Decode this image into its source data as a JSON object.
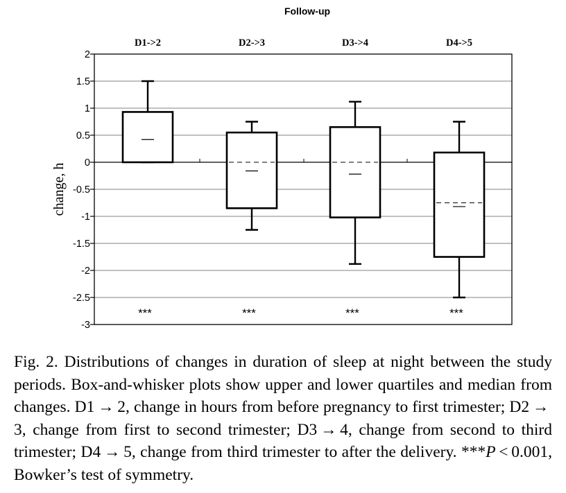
{
  "chart_data": {
    "type": "box",
    "title": "Follow-up",
    "ylabel": "change, h",
    "xlabel": "",
    "ylim": [
      -3,
      2
    ],
    "yticks": [
      "2",
      "1.5",
      "1",
      "0.5",
      "0",
      "-0.5",
      "-1",
      "-1.5",
      "-2",
      "-2.5",
      "-3"
    ],
    "ytick_values": [
      2,
      1.5,
      1,
      0.5,
      0,
      -0.5,
      -1,
      -1.5,
      -2,
      -2.5,
      -3
    ],
    "grid": true,
    "categories": [
      "D1->2",
      "D2->3",
      "D3->4",
      "D4->5"
    ],
    "boxes": [
      {
        "category": "D1->2",
        "whisker_low": 0,
        "q1": 0,
        "median": 0.42,
        "mean": 0,
        "q3": 0.93,
        "whisker_high": 1.5,
        "significance": "***"
      },
      {
        "category": "D2->3",
        "whisker_low": -1.25,
        "q1": -0.85,
        "median": -0.16,
        "mean": 0,
        "q3": 0.55,
        "whisker_high": 0.75,
        "significance": "***"
      },
      {
        "category": "D3->4",
        "whisker_low": -1.88,
        "q1": -1.02,
        "median": -0.22,
        "mean": 0,
        "q3": 0.65,
        "whisker_high": 1.12,
        "significance": "***"
      },
      {
        "category": "D4->5",
        "whisker_low": -2.5,
        "q1": -1.75,
        "median": -0.82,
        "mean": -0.75,
        "q3": 0.18,
        "whisker_high": 0.75,
        "significance": "***"
      }
    ]
  },
  "caption": {
    "text_1": "Fig. 2. Distributions of changes in duration of sleep at night between the study periods. Box-and-whisker plots show upper and lower quartiles and median from changes. D1 → 2, change in hours from before pregnancy to first trimester; D2 → 3, change from first to second trimester; D3 → 4, change from second to third trimester; D4 → 5, change from third trimester to after the delivery. ***",
    "text_p": "P",
    "text_2": " < 0.001, Bowker’s test of symmetry."
  }
}
